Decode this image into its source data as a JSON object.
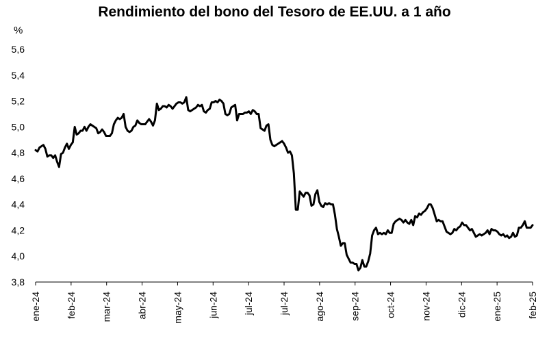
{
  "chart_data": {
    "type": "line",
    "title": "Rendimiento del bono del Tesoro de EE.UU. a 1 año",
    "ylabel": "%",
    "xlabel": "",
    "ylim": [
      3.8,
      5.6
    ],
    "yticks": [
      "3,8",
      "4,0",
      "4,2",
      "4,4",
      "4,6",
      "4,8",
      "5,0",
      "5,2",
      "5,4",
      "5,6"
    ],
    "xticks": [
      "ene-24",
      "feb-24",
      "mar-24",
      "abr-24",
      "may-24",
      "jun-24",
      "jul-24",
      "jul-24",
      "ago-24",
      "sep-24",
      "oct-24",
      "nov-24",
      "dic-24",
      "ene-25",
      "feb-25"
    ],
    "grid": false,
    "legend": "none",
    "line_color": "#000000",
    "series": [
      {
        "values": [
          4.82,
          4.81,
          4.84,
          4.85,
          4.86,
          4.83,
          4.77,
          4.78,
          4.78,
          4.76,
          4.78,
          4.73,
          4.69,
          4.79,
          4.8,
          4.84,
          4.87,
          4.83,
          4.86,
          4.88,
          5.0,
          4.94,
          4.95,
          4.97,
          4.97,
          5.0,
          4.97,
          5.0,
          5.02,
          5.01,
          5.0,
          4.99,
          4.95,
          4.96,
          4.98,
          4.96,
          4.93,
          4.93,
          4.93,
          4.95,
          5.02,
          5.05,
          5.07,
          5.06,
          5.07,
          5.1,
          5.0,
          4.97,
          4.96,
          4.97,
          5.0,
          5.01,
          5.05,
          5.03,
          5.02,
          5.02,
          5.02,
          5.04,
          5.06,
          5.04,
          5.01,
          5.05,
          5.18,
          5.13,
          5.14,
          5.16,
          5.16,
          5.15,
          5.17,
          5.16,
          5.14,
          5.16,
          5.18,
          5.19,
          5.19,
          5.18,
          5.19,
          5.23,
          5.13,
          5.12,
          5.13,
          5.14,
          5.15,
          5.17,
          5.16,
          5.17,
          5.12,
          5.11,
          5.13,
          5.14,
          5.19,
          5.19,
          5.2,
          5.19,
          5.21,
          5.2,
          5.18,
          5.1,
          5.09,
          5.1,
          5.15,
          5.16,
          5.17,
          5.05,
          5.1,
          5.1,
          5.1,
          5.11,
          5.11,
          5.12,
          5.1,
          5.13,
          5.12,
          5.1,
          5.1,
          4.99,
          4.98,
          4.97,
          5.01,
          5.02,
          4.9,
          4.86,
          4.85,
          4.86,
          4.87,
          4.88,
          4.89,
          4.87,
          4.84,
          4.8,
          4.81,
          4.78,
          4.64,
          4.36,
          4.36,
          4.5,
          4.48,
          4.46,
          4.49,
          4.49,
          4.47,
          4.39,
          4.4,
          4.48,
          4.51,
          4.42,
          4.39,
          4.38,
          4.41,
          4.4,
          4.41,
          4.4,
          4.4,
          4.32,
          4.21,
          4.15,
          4.08,
          4.1,
          4.1,
          4.01,
          3.98,
          3.95,
          3.95,
          3.94,
          3.94,
          3.89,
          3.91,
          3.97,
          3.92,
          3.92,
          3.96,
          4.02,
          4.16,
          4.2,
          4.22,
          4.17,
          4.18,
          4.17,
          4.18,
          4.17,
          4.2,
          4.18,
          4.18,
          4.25,
          4.27,
          4.28,
          4.29,
          4.28,
          4.26,
          4.28,
          4.26,
          4.25,
          4.28,
          4.24,
          4.31,
          4.3,
          4.33,
          4.32,
          4.34,
          4.35,
          4.37,
          4.4,
          4.4,
          4.37,
          4.32,
          4.27,
          4.28,
          4.27,
          4.27,
          4.23,
          4.19,
          4.18,
          4.17,
          4.18,
          4.21,
          4.2,
          4.22,
          4.23,
          4.26,
          4.24,
          4.24,
          4.22,
          4.2,
          4.21,
          4.18,
          4.15,
          4.16,
          4.17,
          4.16,
          4.17,
          4.18,
          4.2,
          4.17,
          4.21,
          4.2,
          4.2,
          4.19,
          4.17,
          4.16,
          4.17,
          4.15,
          4.16,
          4.14,
          4.15,
          4.18,
          4.15,
          4.16,
          4.22,
          4.22,
          4.24,
          4.27,
          4.22,
          4.22,
          4.22,
          4.24
        ]
      }
    ]
  }
}
